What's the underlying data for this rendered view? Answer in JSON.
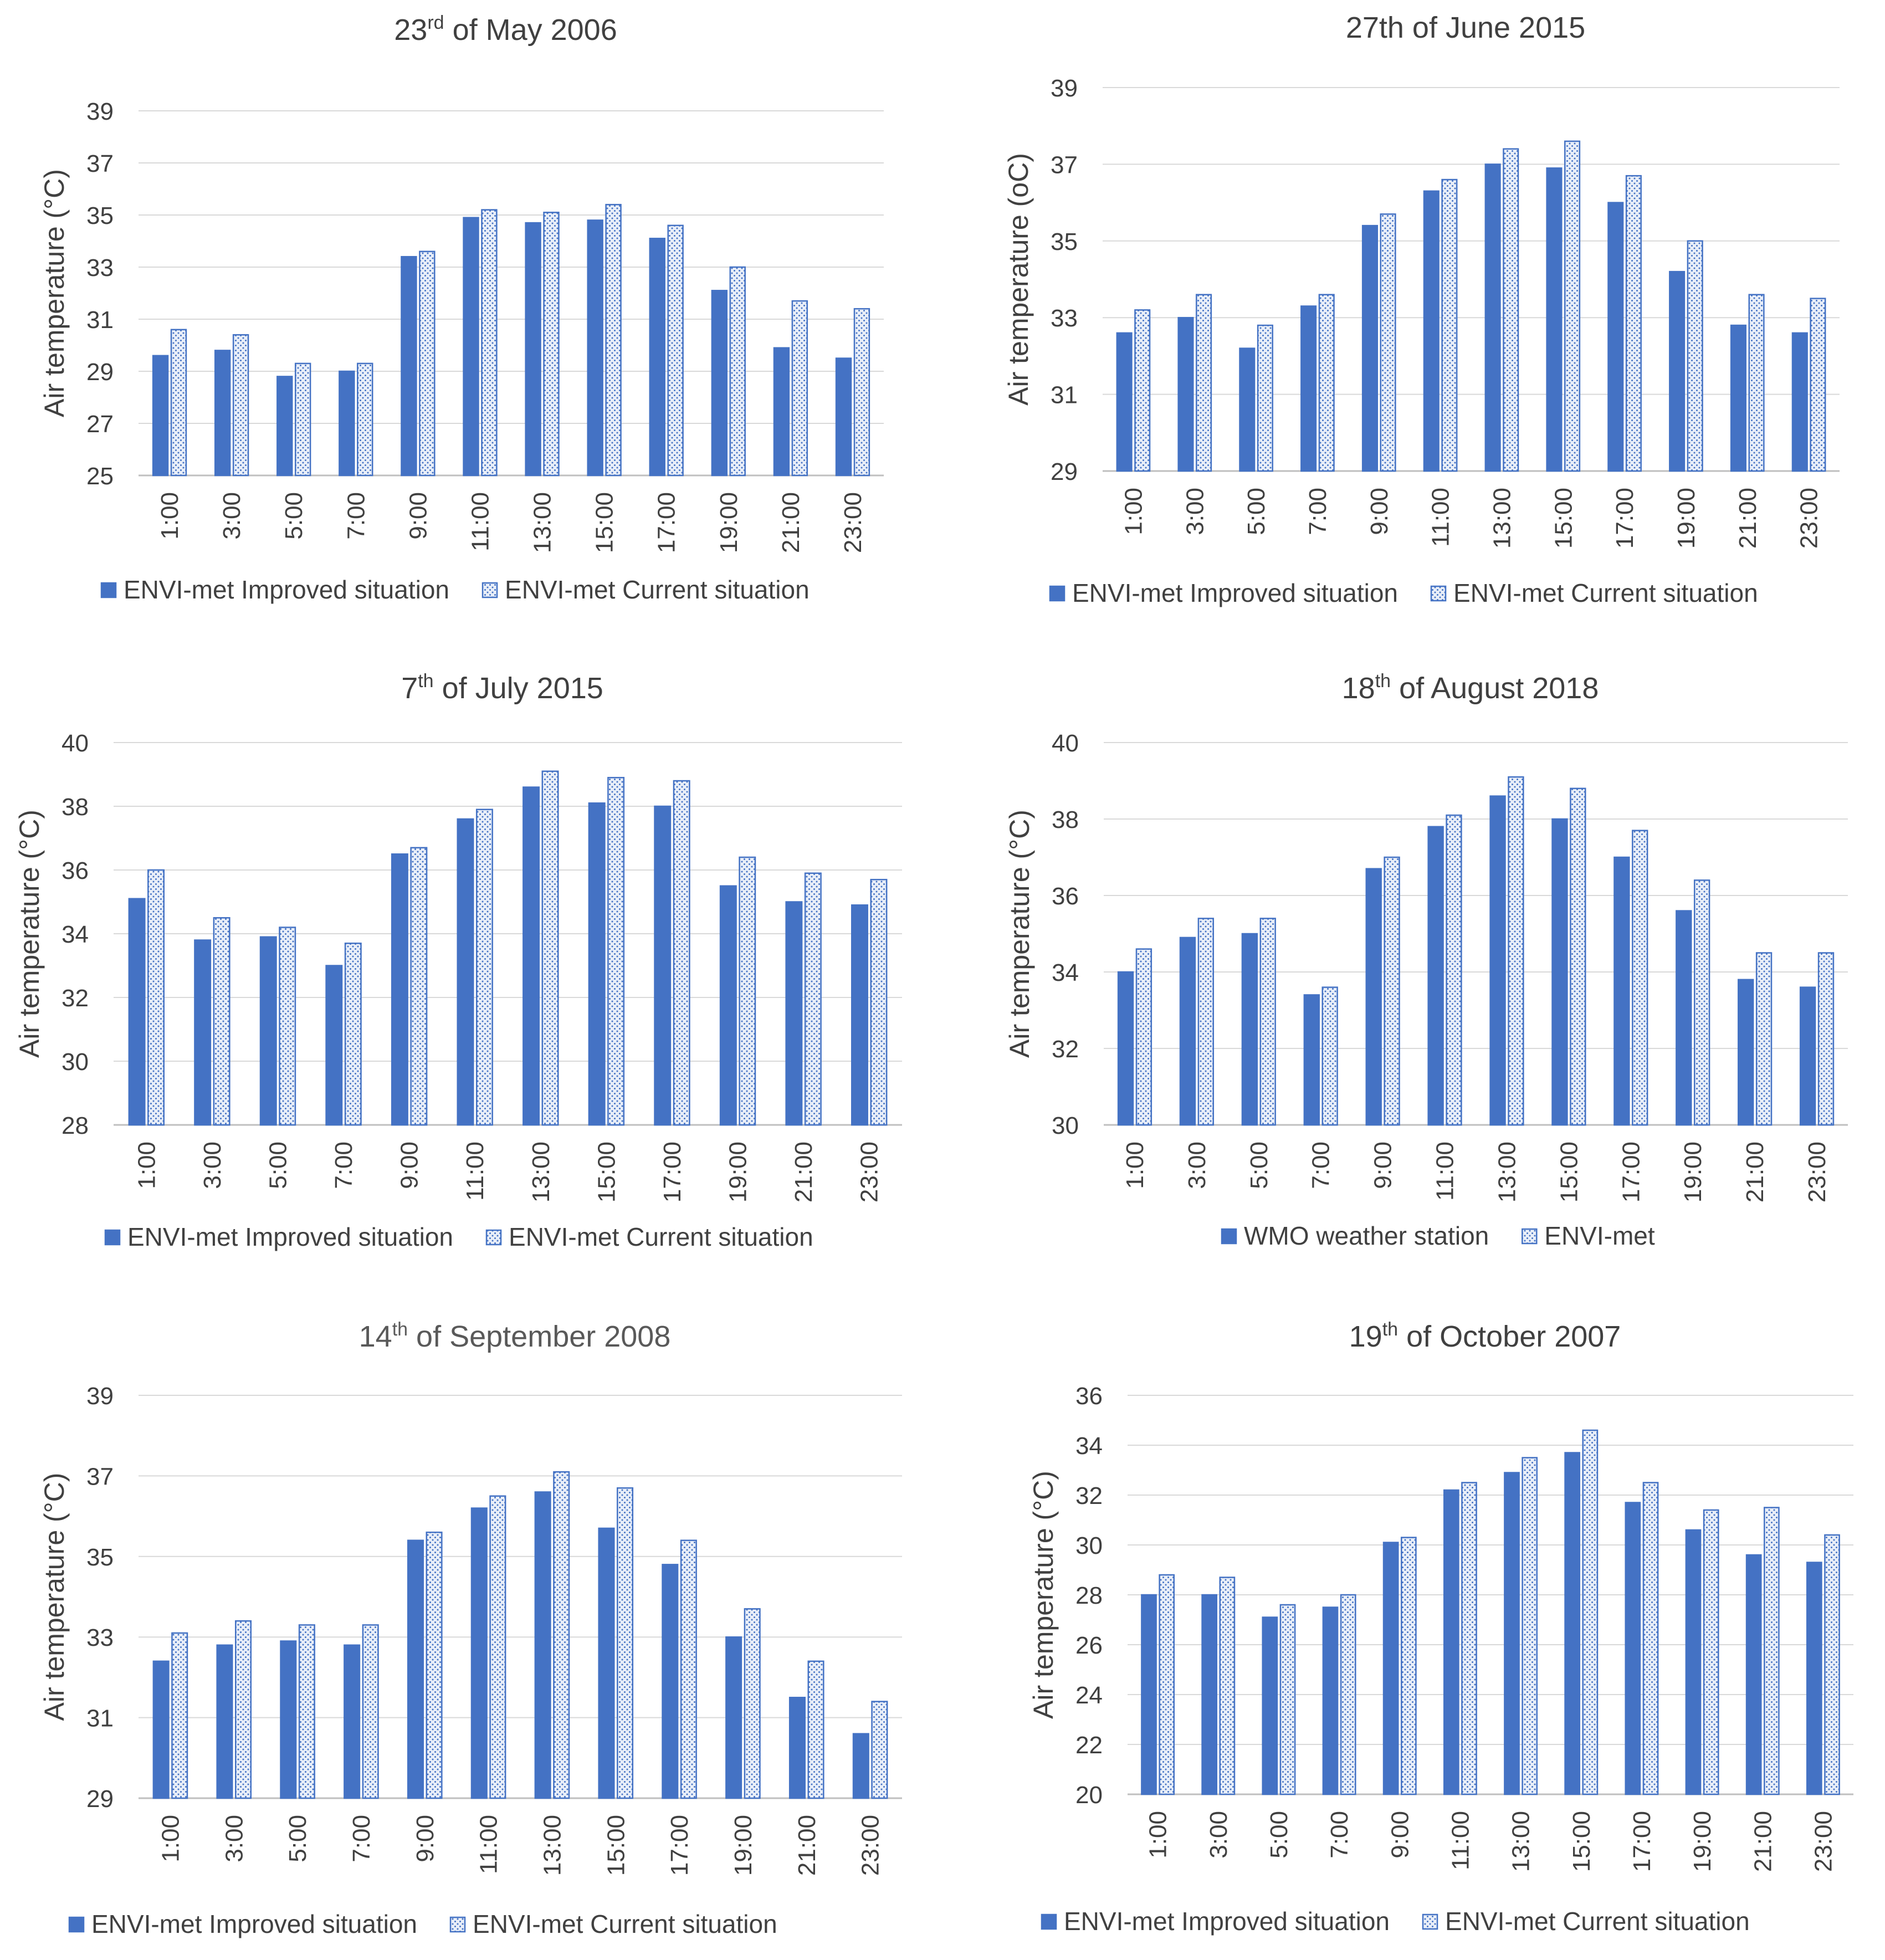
{
  "colors": {
    "improved": "#4472c4",
    "current_fill": "#e8eef8",
    "current_dot": "#4472c4",
    "grid": "#d9d9d9",
    "axis": "#bfbfbf",
    "text": "#404040",
    "title_muted": "#595959"
  },
  "chart_data": [
    {
      "type": "bar",
      "title": "23rd of May 2006",
      "title_parts": [
        "23",
        "rd",
        " of May 2006"
      ],
      "ylabel": "Air temperature (°C)",
      "xlabel": "",
      "ylim": [
        25,
        39
      ],
      "yticks": [
        25,
        27,
        29,
        31,
        33,
        35,
        37,
        39
      ],
      "grid": true,
      "legend_position": "bottom",
      "categories": [
        "1:00",
        "3:00",
        "5:00",
        "7:00",
        "9:00",
        "11:00",
        "13:00",
        "15:00",
        "17:00",
        "19:00",
        "21:00",
        "23:00"
      ],
      "series": [
        {
          "name": "ENVI-met Improved situation",
          "style": "solid",
          "values": [
            29.6,
            29.8,
            28.8,
            29.0,
            33.4,
            34.9,
            34.7,
            34.8,
            34.1,
            32.1,
            29.9,
            29.5
          ]
        },
        {
          "name": "ENVI-met Current situation",
          "style": "dotted",
          "values": [
            30.6,
            30.4,
            29.3,
            29.3,
            33.6,
            35.2,
            35.1,
            35.4,
            34.6,
            33.0,
            31.7,
            31.4
          ]
        }
      ]
    },
    {
      "type": "bar",
      "title": "27th of June 2015",
      "title_parts": [
        "27th of June 2015"
      ],
      "ylabel": "Air temperature (oC)",
      "xlabel": "",
      "ylim": [
        29,
        39
      ],
      "yticks": [
        29,
        31,
        33,
        35,
        37,
        39
      ],
      "grid": true,
      "legend_position": "bottom",
      "categories": [
        "1:00",
        "3:00",
        "5:00",
        "7:00",
        "9:00",
        "11:00",
        "13:00",
        "15:00",
        "17:00",
        "19:00",
        "21:00",
        "23:00"
      ],
      "series": [
        {
          "name": "ENVI-met Improved situation",
          "style": "solid",
          "values": [
            32.6,
            33.0,
            32.2,
            33.3,
            35.4,
            36.3,
            37.0,
            36.9,
            36.0,
            34.2,
            32.8,
            32.6
          ]
        },
        {
          "name": "ENVI-met Current situation",
          "style": "dotted",
          "values": [
            33.2,
            33.6,
            32.8,
            33.6,
            35.7,
            36.6,
            37.4,
            37.6,
            36.7,
            35.0,
            33.6,
            33.5
          ]
        }
      ]
    },
    {
      "type": "bar",
      "title": "7th of July 2015",
      "title_parts": [
        "7",
        "th",
        " of July 2015"
      ],
      "ylabel": "Air temperature (°C)",
      "xlabel": "",
      "ylim": [
        28,
        40
      ],
      "yticks": [
        28,
        30,
        32,
        34,
        36,
        38,
        40
      ],
      "grid": true,
      "legend_position": "bottom",
      "categories": [
        "1:00",
        "3:00",
        "5:00",
        "7:00",
        "9:00",
        "11:00",
        "13:00",
        "15:00",
        "17:00",
        "19:00",
        "21:00",
        "23:00"
      ],
      "series": [
        {
          "name": "ENVI-met Improved situation",
          "style": "solid",
          "values": [
            35.1,
            33.8,
            33.9,
            33.0,
            36.5,
            37.6,
            38.6,
            38.1,
            38.0,
            35.5,
            35.0,
            34.9
          ]
        },
        {
          "name": "ENVI-met Current situation",
          "style": "dotted",
          "values": [
            36.0,
            34.5,
            34.2,
            33.7,
            36.7,
            37.9,
            39.1,
            38.9,
            38.8,
            36.4,
            35.9,
            35.7
          ]
        }
      ]
    },
    {
      "type": "bar",
      "title": "18th of August 2018",
      "title_parts": [
        "18",
        "th",
        " of August 2018"
      ],
      "ylabel": "Air temperature (°C)",
      "xlabel": "",
      "ylim": [
        30,
        40
      ],
      "yticks": [
        30,
        32,
        34,
        36,
        38,
        40
      ],
      "grid": true,
      "legend_position": "bottom",
      "categories": [
        "1:00",
        "3:00",
        "5:00",
        "7:00",
        "9:00",
        "11:00",
        "13:00",
        "15:00",
        "17:00",
        "19:00",
        "21:00",
        "23:00"
      ],
      "series": [
        {
          "name": "WMO weather station",
          "style": "solid",
          "values": [
            34.0,
            34.9,
            35.0,
            33.4,
            36.7,
            37.8,
            38.6,
            38.0,
            37.0,
            35.6,
            33.8,
            33.6
          ]
        },
        {
          "name": "ENVI-met",
          "style": "dotted",
          "values": [
            34.6,
            35.4,
            35.4,
            33.6,
            37.0,
            38.1,
            39.1,
            38.8,
            37.7,
            36.4,
            34.5,
            34.5
          ]
        }
      ]
    },
    {
      "type": "bar",
      "title": "14th of September 2008",
      "title_parts": [
        "14",
        "th",
        " of September 2008"
      ],
      "ylabel": "Air temperature (°C)",
      "xlabel": "",
      "ylim": [
        29,
        39
      ],
      "yticks": [
        29,
        31,
        33,
        35,
        37,
        39
      ],
      "grid": true,
      "legend_position": "bottom",
      "categories": [
        "1:00",
        "3:00",
        "5:00",
        "7:00",
        "9:00",
        "11:00",
        "13:00",
        "15:00",
        "17:00",
        "19:00",
        "21:00",
        "23:00"
      ],
      "series": [
        {
          "name": "ENVI-met Improved situation",
          "style": "solid",
          "values": [
            32.4,
            32.8,
            32.9,
            32.8,
            35.4,
            36.2,
            36.6,
            35.7,
            34.8,
            33.0,
            31.5,
            30.6
          ]
        },
        {
          "name": "ENVI-met Current situation",
          "style": "dotted",
          "values": [
            33.1,
            33.4,
            33.3,
            33.3,
            35.6,
            36.5,
            37.1,
            36.7,
            35.4,
            33.7,
            32.4,
            31.4
          ]
        }
      ]
    },
    {
      "type": "bar",
      "title": "19th of October 2007",
      "title_parts": [
        "19",
        "th",
        " of October 2007"
      ],
      "ylabel": "Air temperature (°C)",
      "xlabel": "",
      "ylim": [
        20,
        36
      ],
      "yticks": [
        20,
        22,
        24,
        26,
        28,
        30,
        32,
        34,
        36
      ],
      "grid": true,
      "legend_position": "bottom",
      "categories": [
        "1:00",
        "3:00",
        "5:00",
        "7:00",
        "9:00",
        "11:00",
        "13:00",
        "15:00",
        "17:00",
        "19:00",
        "21:00",
        "23:00"
      ],
      "series": [
        {
          "name": "ENVI-met Improved situation",
          "style": "solid",
          "values": [
            28.0,
            28.0,
            27.1,
            27.5,
            30.1,
            32.2,
            32.9,
            33.7,
            31.7,
            30.6,
            29.6,
            29.3
          ]
        },
        {
          "name": "ENVI-met Current situation",
          "style": "dotted",
          "values": [
            28.8,
            28.7,
            27.6,
            28.0,
            30.3,
            32.5,
            33.5,
            34.6,
            32.5,
            31.4,
            31.5,
            30.4
          ]
        }
      ]
    }
  ]
}
